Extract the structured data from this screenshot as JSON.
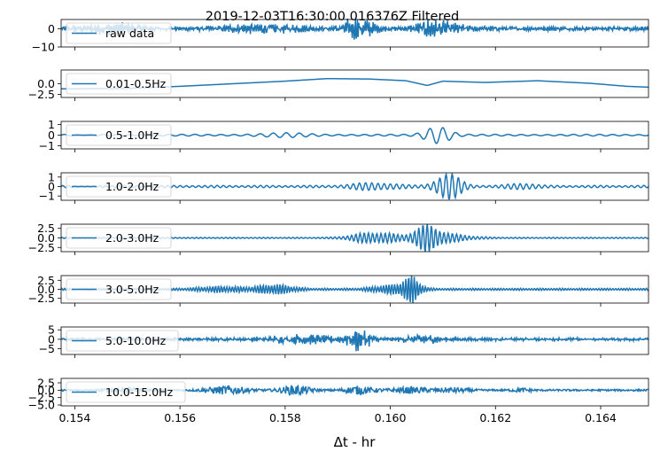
{
  "chart_data": {
    "type": "line",
    "title": "2019-12-03T16:30:00.016376Z Filtered",
    "xlabel": "Δt - hr",
    "xlim": [
      0.15374,
      0.16491
    ],
    "xticks": [
      0.154,
      0.156,
      0.158,
      0.16,
      0.162,
      0.164
    ],
    "xtick_labels": [
      "0.154",
      "0.156",
      "0.158",
      "0.160",
      "0.162",
      "0.164"
    ],
    "line_color": "#1f77b4",
    "legend_position": "upper left",
    "panels": [
      {
        "name": "raw data",
        "ylim": [
          -10,
          5
        ],
        "yticks": [
          0,
          -10
        ],
        "ytick_labels": [
          "0",
          "−10"
        ],
        "base_amplitude": 1.2,
        "envelope": [
          [
            0.1547,
            2.5,
            0.0006
          ],
          [
            0.1576,
            2.0,
            0.0008
          ],
          [
            0.1594,
            5.5,
            0.0003
          ],
          [
            0.1608,
            4.0,
            0.0003
          ],
          [
            0.1612,
            1.5,
            0.0006
          ]
        ],
        "freq_cycles": 300,
        "noise": true
      },
      {
        "name": "0.01-0.5Hz",
        "ylim": [
          -3.2,
          3.2
        ],
        "yticks": [
          0,
          -2.5
        ],
        "ytick_labels": [
          "0.0",
          "−2.5"
        ],
        "trend_points": [
          [
            0.15374,
            -1.2
          ],
          [
            0.155,
            -1.1
          ],
          [
            0.156,
            -0.6
          ],
          [
            0.157,
            0.0
          ],
          [
            0.158,
            0.6
          ],
          [
            0.1588,
            1.2
          ],
          [
            0.1596,
            1.1
          ],
          [
            0.1603,
            0.7
          ],
          [
            0.1607,
            -0.4
          ],
          [
            0.161,
            0.6
          ],
          [
            0.1618,
            0.3
          ],
          [
            0.1628,
            0.7
          ],
          [
            0.1638,
            0.1
          ],
          [
            0.1645,
            -0.6
          ],
          [
            0.16491,
            -0.8
          ]
        ]
      },
      {
        "name": "0.5-1.0Hz",
        "ylim": [
          -1.3,
          1.3
        ],
        "yticks": [
          1,
          0,
          -1
        ],
        "ytick_labels": [
          "1",
          "0",
          "−1"
        ],
        "base_amplitude": 0.08,
        "envelope": [
          [
            0.1609,
            1.05,
            0.00028
          ],
          [
            0.158,
            0.15,
            0.0006
          ]
        ],
        "freq_cycles": 45
      },
      {
        "name": "1.0-2.0Hz",
        "ylim": [
          -1.45,
          1.45
        ],
        "yticks": [
          1,
          0,
          -1
        ],
        "ytick_labels": [
          "1",
          "0",
          "−1"
        ],
        "base_amplitude": 0.12,
        "envelope": [
          [
            0.1611,
            1.3,
            0.0003
          ],
          [
            0.1597,
            0.35,
            0.0005
          ],
          [
            0.1625,
            0.3,
            0.0003
          ]
        ],
        "freq_cycles": 95
      },
      {
        "name": "2.0-3.0Hz",
        "ylim": [
          -3.6,
          3.6
        ],
        "yticks": [
          2.5,
          0,
          -2.5
        ],
        "ytick_labels": [
          "2.5",
          "0.0",
          "−2.5"
        ],
        "base_amplitude": 0.15,
        "envelope": [
          [
            0.1607,
            2.9,
            0.00028
          ],
          [
            0.1597,
            1.5,
            0.0005
          ],
          [
            0.161,
            1.0,
            0.0006
          ]
        ],
        "freq_cycles": 140
      },
      {
        "name": "3.0-5.0Hz",
        "ylim": [
          -3.8,
          3.8
        ],
        "yticks": [
          2.5,
          0,
          -2.5
        ],
        "ytick_labels": [
          "2.5",
          "0.0",
          "−2.5"
        ],
        "base_amplitude": 0.3,
        "envelope": [
          [
            0.1604,
            3.4,
            0.0002
          ],
          [
            0.1578,
            1.3,
            0.0004
          ],
          [
            0.16,
            1.1,
            0.0004
          ],
          [
            0.1568,
            0.7,
            0.0005
          ]
        ],
        "freq_cycles": 210
      },
      {
        "name": "5.0-10.0Hz",
        "ylim": [
          -8,
          6.5
        ],
        "yticks": [
          5,
          0,
          -5
        ],
        "ytick_labels": [
          "5",
          "0",
          "−5"
        ],
        "base_amplitude": 0.8,
        "envelope": [
          [
            0.1594,
            5.5,
            0.00025
          ],
          [
            0.1583,
            2.2,
            0.0006
          ],
          [
            0.1606,
            2.0,
            0.0004
          ]
        ],
        "freq_cycles": 320,
        "noise": true
      },
      {
        "name": "10.0-15.0Hz",
        "ylim": [
          -5.3,
          4.0
        ],
        "yticks": [
          2.5,
          0,
          -2.5,
          -5
        ],
        "ytick_labels": [
          "2.5",
          "0.0",
          "−2.5",
          "−5.0"
        ],
        "base_amplitude": 0.5,
        "envelope": [
          [
            0.1569,
            2.2,
            0.0004
          ],
          [
            0.1582,
            2.5,
            0.0003
          ],
          [
            0.1594,
            2.0,
            0.0003
          ],
          [
            0.1604,
            1.5,
            0.0004
          ],
          [
            0.1612,
            1.2,
            0.0003
          ],
          [
            0.1549,
            1.5,
            0.0003
          ],
          [
            0.1625,
            0.9,
            0.0002
          ]
        ],
        "freq_cycles": 450,
        "noise": true
      }
    ]
  }
}
